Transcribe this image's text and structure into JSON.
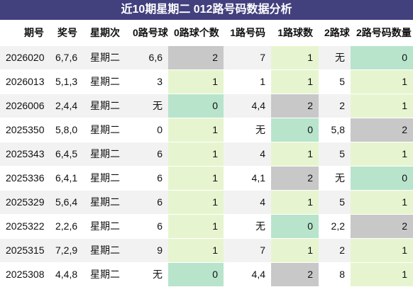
{
  "title": "近10期星期二 012路号码数据分析",
  "colors": {
    "title_bg": "#43407e",
    "green": "#b8e4cc",
    "gray": "#c8c8c8",
    "light": "#e6f5cf"
  },
  "headers": [
    "期号",
    "奖号",
    "星期次",
    "0路号球",
    "0路球个数",
    "1路号码",
    "1路球数",
    "2路球",
    "2路号码数量"
  ],
  "rows": [
    {
      "issue": "2026020",
      "nums": "6,7,6",
      "weekday": "星期二",
      "r0_balls": "6,6",
      "r0_count": "2",
      "r1_balls": "7",
      "r1_count": "1",
      "r2_balls": "无",
      "r2_count": "0",
      "r0_count_color": "gray",
      "r1_count_color": "light",
      "r2_count_color": "green"
    },
    {
      "issue": "2026013",
      "nums": "5,1,3",
      "weekday": "星期二",
      "r0_balls": "3",
      "r0_count": "1",
      "r1_balls": "1",
      "r1_count": "1",
      "r2_balls": "5",
      "r2_count": "1",
      "r0_count_color": "light",
      "r1_count_color": "light",
      "r2_count_color": "light"
    },
    {
      "issue": "2026006",
      "nums": "2,4,4",
      "weekday": "星期二",
      "r0_balls": "无",
      "r0_count": "0",
      "r1_balls": "4,4",
      "r1_count": "2",
      "r2_balls": "2",
      "r2_count": "1",
      "r0_count_color": "green",
      "r1_count_color": "gray",
      "r2_count_color": "light"
    },
    {
      "issue": "2025350",
      "nums": "5,8,0",
      "weekday": "星期二",
      "r0_balls": "0",
      "r0_count": "1",
      "r1_balls": "无",
      "r1_count": "0",
      "r2_balls": "5,8",
      "r2_count": "2",
      "r0_count_color": "light",
      "r1_count_color": "green",
      "r2_count_color": "gray"
    },
    {
      "issue": "2025343",
      "nums": "6,4,5",
      "weekday": "星期二",
      "r0_balls": "6",
      "r0_count": "1",
      "r1_balls": "4",
      "r1_count": "1",
      "r2_balls": "5",
      "r2_count": "1",
      "r0_count_color": "light",
      "r1_count_color": "light",
      "r2_count_color": "light"
    },
    {
      "issue": "2025336",
      "nums": "6,4,1",
      "weekday": "星期二",
      "r0_balls": "6",
      "r0_count": "1",
      "r1_balls": "4,1",
      "r1_count": "2",
      "r2_balls": "无",
      "r2_count": "0",
      "r0_count_color": "light",
      "r1_count_color": "gray",
      "r2_count_color": "green"
    },
    {
      "issue": "2025329",
      "nums": "5,6,4",
      "weekday": "星期二",
      "r0_balls": "6",
      "r0_count": "1",
      "r1_balls": "4",
      "r1_count": "1",
      "r2_balls": "5",
      "r2_count": "1",
      "r0_count_color": "light",
      "r1_count_color": "light",
      "r2_count_color": "light"
    },
    {
      "issue": "2025322",
      "nums": "2,2,6",
      "weekday": "星期二",
      "r0_balls": "6",
      "r0_count": "1",
      "r1_balls": "无",
      "r1_count": "0",
      "r2_balls": "2,2",
      "r2_count": "2",
      "r0_count_color": "light",
      "r1_count_color": "green",
      "r2_count_color": "gray"
    },
    {
      "issue": "2025315",
      "nums": "7,2,9",
      "weekday": "星期二",
      "r0_balls": "9",
      "r0_count": "1",
      "r1_balls": "7",
      "r1_count": "1",
      "r2_balls": "2",
      "r2_count": "1",
      "r0_count_color": "light",
      "r1_count_color": "light",
      "r2_count_color": "light"
    },
    {
      "issue": "2025308",
      "nums": "4,4,8",
      "weekday": "星期二",
      "r0_balls": "无",
      "r0_count": "0",
      "r1_balls": "4,4",
      "r1_count": "2",
      "r2_balls": "8",
      "r2_count": "1",
      "r0_count_color": "green",
      "r1_count_color": "gray",
      "r2_count_color": "light"
    }
  ]
}
